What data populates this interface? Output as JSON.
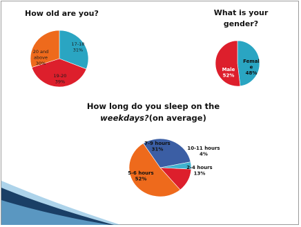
{
  "chart_data": [
    {
      "type": "pie",
      "title": "How old are you?",
      "slices": [
        {
          "label": "17-18",
          "value": 31,
          "value_text": "31%",
          "color": "#2aa5c2"
        },
        {
          "label": "19-20",
          "value": 39,
          "value_text": "39%",
          "color": "#dd1f2c"
        },
        {
          "label": "20 and above",
          "value": 30,
          "value_text": "30%",
          "color": "#ee6a1c"
        }
      ]
    },
    {
      "type": "pie",
      "title": "What is your gender?",
      "slices": [
        {
          "label": "Female",
          "value": 48,
          "value_text": "48%",
          "color": "#2aa5c2"
        },
        {
          "label": "Male",
          "value": 52,
          "value_text": "52%",
          "color": "#dd1f2c"
        }
      ]
    },
    {
      "type": "pie",
      "title_pre": "How long do you sleep on the",
      "title_em": "weekdays?",
      "title_post": "(on average)",
      "slices": [
        {
          "label": "7-9 hours",
          "value": 31,
          "value_text": "31%",
          "color": "#3b5ea4"
        },
        {
          "label": "10-11 hours",
          "value": 4,
          "value_text": "4%",
          "color": "#3fb2cf"
        },
        {
          "label": "2-4 hours",
          "value": 13,
          "value_text": "13%",
          "color": "#dd1f2c"
        },
        {
          "label": "5-6 hours",
          "value": 52,
          "value_text": "52%",
          "color": "#ee6a1c"
        }
      ]
    }
  ],
  "decor": {
    "wave_color_dark": "#1a3f66",
    "wave_color_light": "#6aaed8"
  }
}
